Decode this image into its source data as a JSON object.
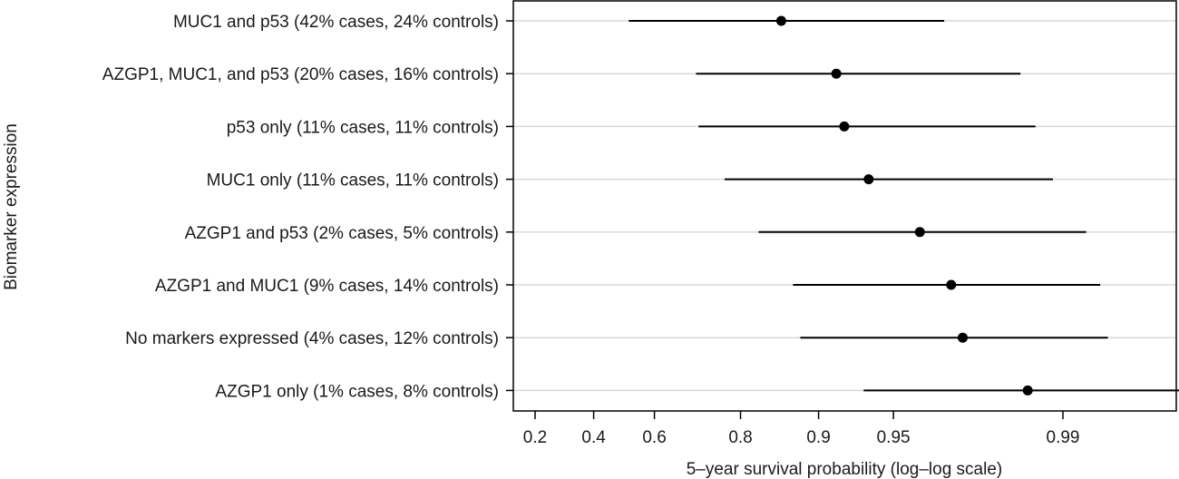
{
  "chart_data": {
    "type": "forest",
    "xlabel": "5–year survival probability (log–log scale)",
    "ylabel": "Biomarker expression",
    "x_scale": "log-log",
    "grid": "horizontal",
    "xticks": [
      "0.2",
      "0.4",
      "0.6",
      "0.8",
      "0.9",
      "0.95",
      "0.99"
    ],
    "categories": [
      "MUC1 and p53 (42% cases, 24% controls)",
      "AZGP1, MUC1, and p53 (20% cases, 16% controls)",
      "p53 only (11% cases, 11% controls)",
      "MUC1 only (11% cases, 11% controls)",
      "AZGP1 and p53 (2% cases, 5% controls)",
      "AZGP1 and MUC1 (9% cases, 14% controls)",
      "No markers expressed (4% cases, 12% controls)",
      "AZGP1 only (1% cases, 8% controls)"
    ],
    "estimates": [
      0.86,
      0.915,
      0.921,
      0.937,
      0.961,
      0.971,
      0.974,
      0.986
    ],
    "lower": [
      0.52,
      0.71,
      0.716,
      0.771,
      0.829,
      0.874,
      0.882,
      0.934
    ],
    "upper": [
      0.969,
      0.985,
      0.987,
      0.989,
      0.992,
      0.993,
      0.9935,
      0.997
    ],
    "colors": {
      "marker": "#000000",
      "grid": "#d9d9d9",
      "frame": "#000000"
    }
  }
}
